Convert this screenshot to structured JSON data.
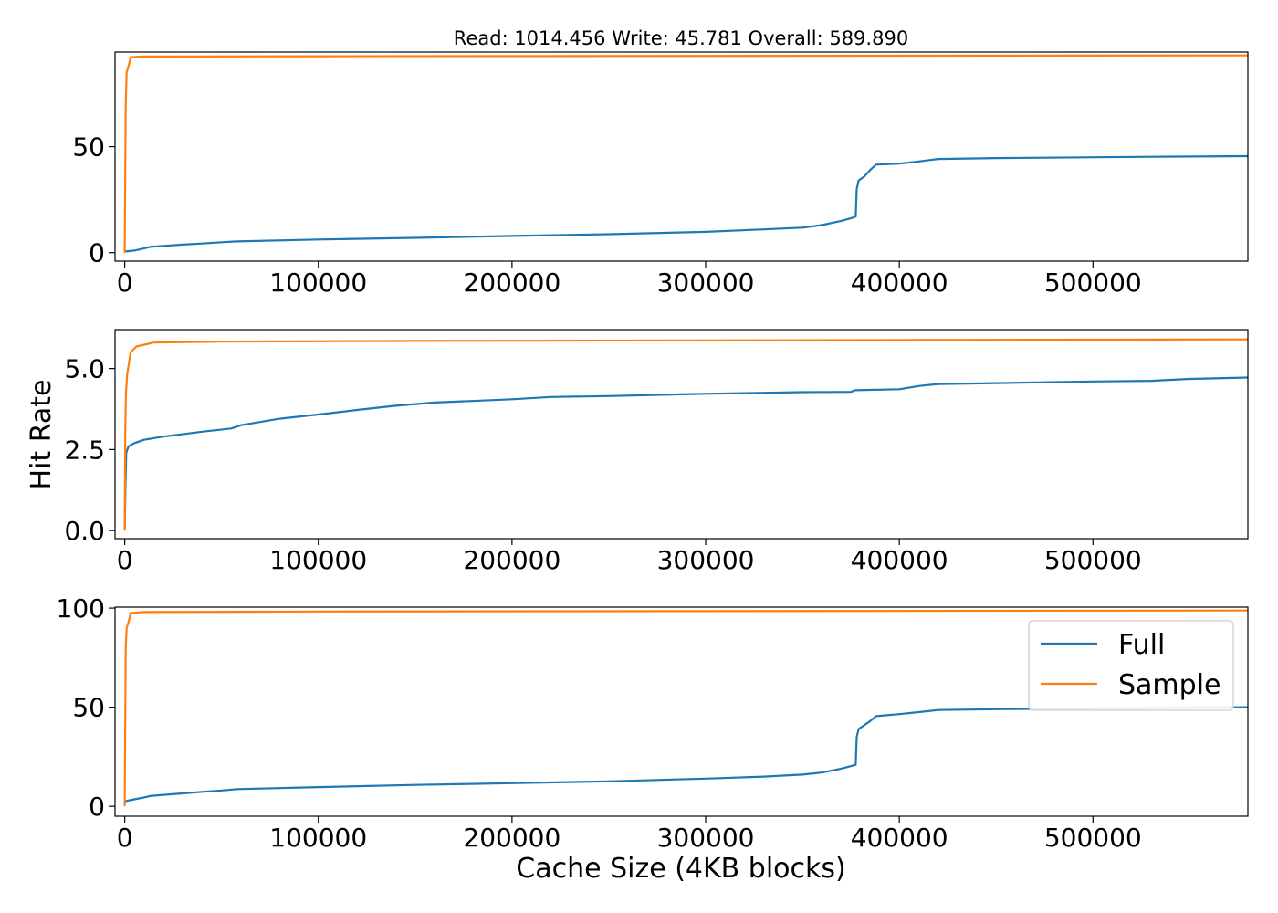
{
  "title": "Read: 1014.456 Write: 45.781 Overall: 589.890",
  "ylabel": "Hit Rate",
  "xlabel": "Cache Size (4KB blocks)",
  "colors": {
    "full": "#1f77b4",
    "sample": "#ff7f0e"
  },
  "legend": {
    "placement": "upper-right",
    "entries": [
      "Full",
      "Sample"
    ]
  },
  "chart_data": [
    {
      "type": "line",
      "xlim": [
        -5000,
        580000
      ],
      "ylim": [
        -4,
        94.6
      ],
      "xticks": [
        0,
        100000,
        200000,
        300000,
        400000,
        500000
      ],
      "yticks": [
        0,
        50
      ],
      "ytick_labels": [
        "0",
        "50"
      ],
      "series": [
        {
          "name": "Full",
          "color": "#1f77b4",
          "points": [
            [
              0,
              0.5
            ],
            [
              5000,
              1
            ],
            [
              10000,
              2
            ],
            [
              13000,
              2.7
            ],
            [
              20000,
              3.2
            ],
            [
              30000,
              3.8
            ],
            [
              40000,
              4.3
            ],
            [
              50000,
              4.9
            ],
            [
              58000,
              5.3
            ],
            [
              100000,
              6.2
            ],
            [
              150000,
              7
            ],
            [
              200000,
              7.9
            ],
            [
              250000,
              8.7
            ],
            [
              300000,
              9.8
            ],
            [
              330000,
              11
            ],
            [
              350000,
              11.8
            ],
            [
              360000,
              13
            ],
            [
              370000,
              15
            ],
            [
              376000,
              16.5
            ],
            [
              377500,
              17
            ],
            [
              378000,
              30
            ],
            [
              379000,
              34
            ],
            [
              382000,
              36
            ],
            [
              385000,
              39
            ],
            [
              388000,
              41.5
            ],
            [
              400000,
              42
            ],
            [
              410000,
              43
            ],
            [
              420000,
              44.2
            ],
            [
              450000,
              44.6
            ],
            [
              530000,
              45.2
            ],
            [
              580000,
              45.5
            ]
          ]
        },
        {
          "name": "Sample",
          "color": "#ff7f0e",
          "points": [
            [
              0,
              0
            ],
            [
              500,
              70
            ],
            [
              1000,
              85
            ],
            [
              2000,
              88
            ],
            [
              2500,
              90
            ],
            [
              3000,
              92.2
            ],
            [
              10000,
              92.5
            ],
            [
              100000,
              92.6
            ],
            [
              580000,
              93
            ]
          ]
        }
      ]
    },
    {
      "type": "line",
      "xlim": [
        -5000,
        580000
      ],
      "ylim": [
        -0.25,
        6.2
      ],
      "xticks": [
        0,
        100000,
        200000,
        300000,
        400000,
        500000
      ],
      "yticks": [
        0,
        2.5,
        5
      ],
      "ytick_labels": [
        "0.0",
        "2.5",
        "5.0"
      ],
      "series": [
        {
          "name": "Full",
          "color": "#1f77b4",
          "points": [
            [
              0,
              0
            ],
            [
              400,
              1.5
            ],
            [
              800,
              2.4
            ],
            [
              2000,
              2.6
            ],
            [
              5000,
              2.7
            ],
            [
              10000,
              2.8
            ],
            [
              20000,
              2.9
            ],
            [
              40000,
              3.05
            ],
            [
              55000,
              3.15
            ],
            [
              60000,
              3.25
            ],
            [
              80000,
              3.45
            ],
            [
              100000,
              3.58
            ],
            [
              120000,
              3.72
            ],
            [
              140000,
              3.85
            ],
            [
              160000,
              3.95
            ],
            [
              200000,
              4.05
            ],
            [
              220000,
              4.12
            ],
            [
              250000,
              4.15
            ],
            [
              300000,
              4.22
            ],
            [
              350000,
              4.27
            ],
            [
              375000,
              4.28
            ],
            [
              377000,
              4.33
            ],
            [
              400000,
              4.36
            ],
            [
              410000,
              4.46
            ],
            [
              420000,
              4.52
            ],
            [
              450000,
              4.55
            ],
            [
              500000,
              4.6
            ],
            [
              530000,
              4.62
            ],
            [
              550000,
              4.68
            ],
            [
              580000,
              4.72
            ]
          ]
        },
        {
          "name": "Sample",
          "color": "#ff7f0e",
          "points": [
            [
              0,
              0
            ],
            [
              300,
              3
            ],
            [
              600,
              4.2
            ],
            [
              1200,
              4.8
            ],
            [
              3000,
              5.5
            ],
            [
              6000,
              5.68
            ],
            [
              15000,
              5.8
            ],
            [
              50000,
              5.83
            ],
            [
              150000,
              5.85
            ],
            [
              580000,
              5.9
            ]
          ]
        }
      ]
    },
    {
      "type": "line",
      "xlim": [
        -5000,
        580000
      ],
      "ylim": [
        -5,
        100.5
      ],
      "xticks": [
        0,
        100000,
        200000,
        300000,
        400000,
        500000
      ],
      "yticks": [
        0,
        50,
        100
      ],
      "ytick_labels": [
        "0",
        "50",
        "100"
      ],
      "series": [
        {
          "name": "Full",
          "color": "#1f77b4",
          "points": [
            [
              0,
              2.5
            ],
            [
              5000,
              3.5
            ],
            [
              10000,
              4.5
            ],
            [
              13000,
              5.2
            ],
            [
              20000,
              5.8
            ],
            [
              30000,
              6.5
            ],
            [
              40000,
              7.3
            ],
            [
              50000,
              8
            ],
            [
              58000,
              8.7
            ],
            [
              100000,
              9.7
            ],
            [
              150000,
              10.8
            ],
            [
              200000,
              11.7
            ],
            [
              250000,
              12.6
            ],
            [
              300000,
              14
            ],
            [
              330000,
              15
            ],
            [
              350000,
              16
            ],
            [
              360000,
              17
            ],
            [
              370000,
              19
            ],
            [
              376000,
              20.5
            ],
            [
              377500,
              21
            ],
            [
              378000,
              35
            ],
            [
              379000,
              39
            ],
            [
              382000,
              41
            ],
            [
              385000,
              43
            ],
            [
              388000,
              45.5
            ],
            [
              400000,
              46.5
            ],
            [
              410000,
              47.5
            ],
            [
              420000,
              48.6
            ],
            [
              450000,
              49
            ],
            [
              530000,
              49.6
            ],
            [
              580000,
              50
            ]
          ]
        },
        {
          "name": "Sample",
          "color": "#ff7f0e",
          "points": [
            [
              0,
              0
            ],
            [
              500,
              80
            ],
            [
              1000,
              90
            ],
            [
              2000,
              93
            ],
            [
              2500,
              95
            ],
            [
              3000,
              97.5
            ],
            [
              10000,
              98
            ],
            [
              100000,
              98.3
            ],
            [
              580000,
              98.8
            ]
          ]
        }
      ]
    }
  ]
}
